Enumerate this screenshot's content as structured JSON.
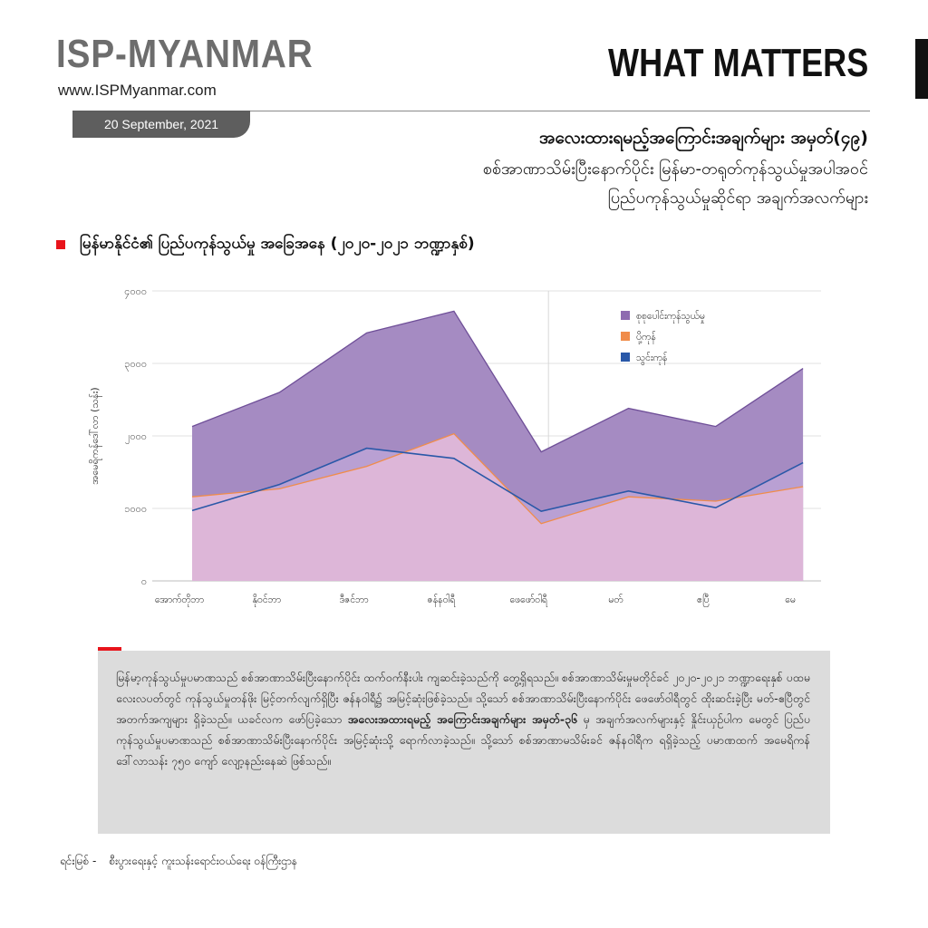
{
  "header": {
    "logo": "ISP-MYANMAR",
    "website": "www.ISPMyanmar.com",
    "date": "20 September, 2021",
    "brand": "WHAT MATTERS",
    "title_bold": "အလေးထားရမည့်အကြောင်းအချက်များ အမှတ်(၄၉)",
    "title_line2": "စစ်အာဏာသိမ်းပြီးနောက်ပိုင်း မြန်မာ-တရုတ်ကုန်သွယ်မှုအပါအဝင်",
    "title_line3": "ပြည်ပကုန်သွယ်မှုဆိုင်ရာ အချက်အလက်များ"
  },
  "section": {
    "title": "မြန်မာနိုင်ငံ၏ ပြည်ပကုန်သွယ်မှု အခြေအနေ (၂၀၂၀-၂၀၂၁ ဘဏ္ဍာနှစ်)"
  },
  "chart_data": {
    "type": "area",
    "title": "",
    "ylabel": "အမေရိကန်ဒေါ်လာ (သန်း)",
    "xlabel": "",
    "ylim": [
      0,
      4000
    ],
    "y_ticks": [
      0,
      1000,
      2000,
      3000,
      4000
    ],
    "y_tick_labels": [
      "၀",
      "၁၀၀၀",
      "၂၀၀၀",
      "၃၀၀၀",
      "၄၀၀၀"
    ],
    "categories": [
      "အောက်တိုဘာ",
      "နိုဝင်ဘာ",
      "ဒီဇင်ဘာ",
      "ဇန်နဝါရီ",
      "ဖေဖော်ဝါရီ",
      "မတ်",
      "ဧပြီ",
      "မေ"
    ],
    "grid": "horizontal, vertical line at ဖေဖော်ဝါရီ",
    "legend_position": "top-right",
    "series": [
      {
        "name": "စုစုပေါင်းကုန်သွယ်မှု",
        "color": "#8e6bb0",
        "values": [
          2130,
          2600,
          3420,
          3720,
          1780,
          2380,
          2130,
          2930
        ]
      },
      {
        "name": "ပို့ကုန်",
        "color": "#f08c4a",
        "values": [
          1160,
          1270,
          1580,
          2030,
          790,
          1160,
          1100,
          1300
        ]
      },
      {
        "name": "သွင်းကုန်",
        "color": "#2a58a8",
        "values": [
          970,
          1330,
          1830,
          1690,
          960,
          1240,
          1010,
          1630
        ]
      }
    ]
  },
  "note": {
    "part1": "မြန်မာ့ကုန်သွယ်မှုပမာဏသည် စစ်အာဏာသိမ်းပြီးနောက်ပိုင်း ထက်ဝက်နီးပါး ကျဆင်းခဲ့သည်ကို တွေ့ရှိရသည်။ စစ်အာဏာသိမ်းမှုမတိုင်ခင် ၂၀၂၀-၂၀၂၁ ဘဏ္ဍာရေးနှစ် ပထမလေးလပတ်တွင် ကုန်သွယ်မှုတန်ဖိုး မြင့်တက်လျက်ရှိပြီး ဇန်နဝါရီ၌ အမြင့်ဆုံးဖြစ်ခဲ့သည်။ သို့သော် စစ်အာဏာသိမ်းပြီးနောက်ပိုင်း ဖေဖော်ဝါရီတွင် ထိုးဆင်းခဲ့ပြီး မတ်-ဧပြီတွင် အတက်အကျများ ရှိခဲ့သည်။ ယခင်လက ဖော်ပြခဲ့သော ",
    "bold": "အလေးအထားရမည့် အကြောင်းအချက်များ အမှတ်-၃၆",
    "part2": " မှ အချက်အလက်များနှင့် နှိုင်းယှဉ်ပါက မေတွင် ပြည်ပကုန်သွယ်မှုပမာဏသည် စစ်အာဏာသိမ်းပြီးနောက်ပိုင်း အမြင့်ဆုံးသို့ ရောက်လာခဲ့သည်။ သို့သော် စစ်အာဏာမသိမ်းခင် ဇန်နဝါရီက ရရှိခဲ့သည့် ပမာဏထက် အမေရိကန်ဒေါ်လာသန်း ၇၅၀ ကျော် လျော့နည်းနေဆဲ ဖြစ်သည်။"
  },
  "source": {
    "label": "ရင်းမြစ် -",
    "text": "စီးပွားရေးနှင့် ကူးသန်းရောင်းဝယ်ရေး ဝန်ကြီးဌာန"
  }
}
